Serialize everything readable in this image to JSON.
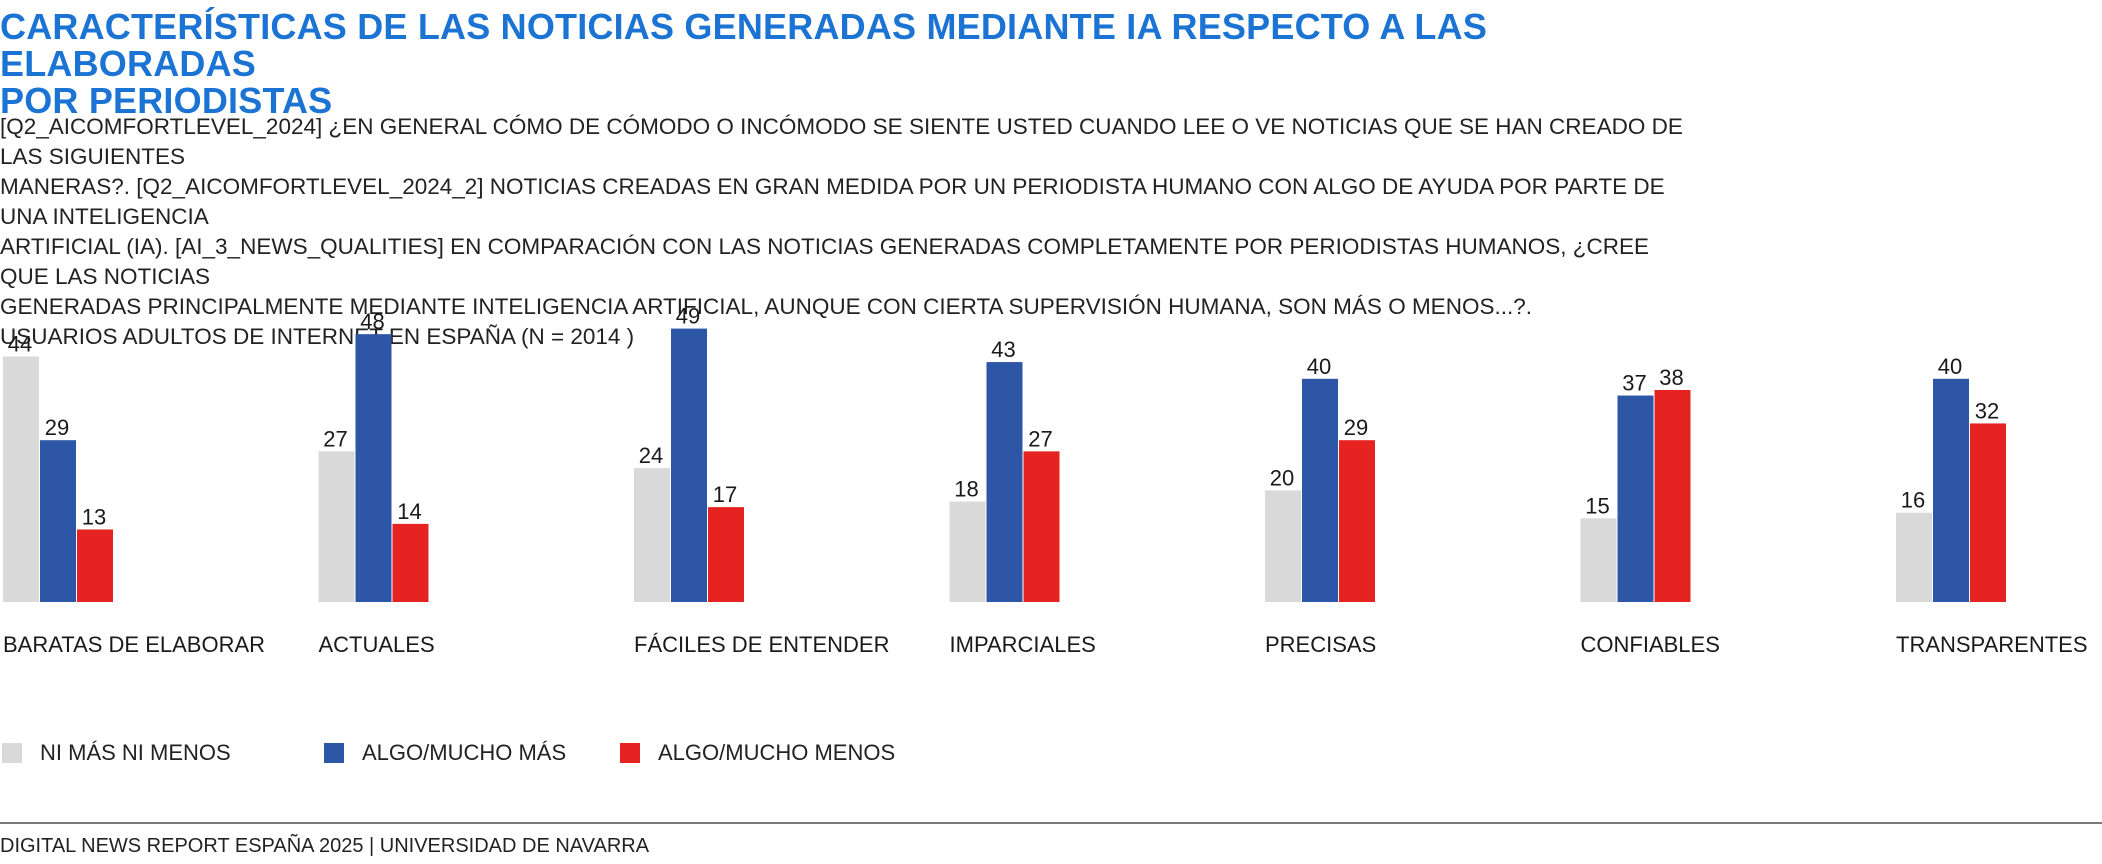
{
  "title": "CARACTERÍSTICAS DE LAS NOTICIAS GENERADAS MEDIANTE IA RESPECTO A LAS ELABORADAS\nPOR PERIODISTAS",
  "subtitle": "[Q2_AICOMFORTLEVEL_2024] ¿EN GENERAL CÓMO DE CÓMODO O INCÓMODO SE SIENTE USTED CUANDO LEE O VE NOTICIAS QUE SE HAN CREADO DE LAS SIGUIENTES\nMANERAS?. [Q2_AICOMFORTLEVEL_2024_2]  NOTICIAS CREADAS EN GRAN MEDIDA POR UN PERIODISTA HUMANO CON ALGO DE AYUDA POR PARTE DE UNA INTELIGENCIA\nARTIFICIAL (IA). [AI_3_NEWS_QUALITIES] EN COMPARACIÓN CON LAS NOTICIAS GENERADAS COMPLETAMENTE POR PERIODISTAS HUMANOS,  ¿CREE QUE LAS NOTICIAS\nGENERADAS PRINCIPALMENTE MEDIANTE INTELIGENCIA ARTIFICIAL, AUNQUE CON CIERTA SUPERVISIÓN HUMANA, SON MÁS O MENOS...?.\nUSUARIOS ADULTOS DE INTERNET EN ESPAÑA (N = 2014 )",
  "legend": [
    {
      "label": "NI MÁS NI MENOS",
      "color": "#d9d9d9"
    },
    {
      "label": "ALGO/MUCHO MÁS",
      "color": "#2e56a6"
    },
    {
      "label": "ALGO/MUCHO MENOS",
      "color": "#e52421"
    }
  ],
  "source": "DIGITAL NEWS REPORT ESPAÑA 2025 | UNIVERSIDAD DE NAVARRA",
  "chart_data": {
    "type": "bar",
    "categories": [
      "BARATAS DE ELABORAR",
      "ACTUALES",
      "FÁCILES DE ENTENDER",
      "IMPARCIALES",
      "PRECISAS",
      "CONFIABLES",
      "TRANSPARENTES"
    ],
    "series": [
      {
        "name": "NI MÁS NI MENOS",
        "color": "#d9d9d9",
        "values": [
          44,
          27,
          24,
          18,
          20,
          15,
          16
        ]
      },
      {
        "name": "ALGO/MUCHO MÁS",
        "color": "#2e56a6",
        "values": [
          29,
          48,
          49,
          43,
          40,
          37,
          40
        ]
      },
      {
        "name": "ALGO/MUCHO MENOS",
        "color": "#e52421",
        "values": [
          13,
          14,
          17,
          27,
          29,
          38,
          32
        ]
      }
    ],
    "ylim": [
      0,
      50
    ],
    "grid": false,
    "data_labels": true,
    "legend_position": "bottom-left"
  }
}
